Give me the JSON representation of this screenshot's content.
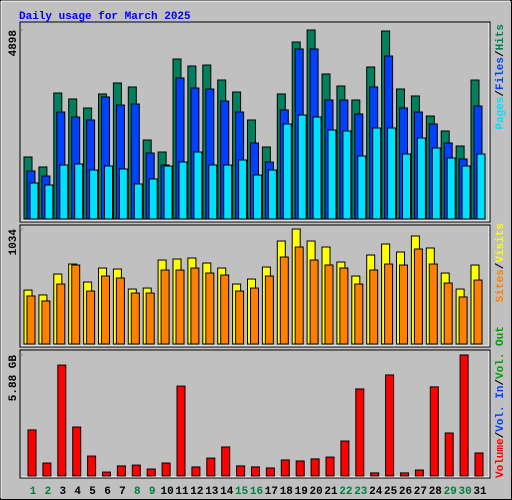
{
  "chart_data": [
    {
      "type": "bar",
      "title": "Daily usage for March 2025",
      "ylim": [
        0,
        4898
      ],
      "yticks": [
        4898
      ],
      "separator": "/",
      "series": [
        {
          "name": "Hits",
          "color": "#00805c",
          "values": [
            1607,
            1348,
            3265,
            3110,
            2877,
            3240,
            3525,
            3421,
            2047,
            1736,
            4146,
            3965,
            3991,
            3602,
            3291,
            2566,
            1866,
            3240,
            4587,
            4898,
            3758,
            3447,
            3084,
            3939,
            4872,
            3369,
            3188,
            2669,
            2281,
            1892,
            3602
          ]
        },
        {
          "name": "Files",
          "color": "#0040ff",
          "values": [
            1244,
            1114,
            2773,
            2643,
            2566,
            3162,
            2954,
            2980,
            1710,
            1399,
            3654,
            3395,
            3369,
            3058,
            2773,
            1970,
            1477,
            2825,
            4406,
            4406,
            3084,
            3084,
            2721,
            3421,
            4224,
            2877,
            2773,
            2462,
            1970,
            1555,
            2928
          ]
        },
        {
          "name": "Pages",
          "color": "#00e0ff",
          "values": [
            933,
            881,
            1399,
            1425,
            1270,
            1373,
            1296,
            907,
            1037,
            1373,
            1477,
            1736,
            1399,
            1399,
            1529,
            1140,
            1270,
            2462,
            2695,
            2643,
            2306,
            2281,
            1633,
            2358,
            2358,
            1684,
            2099,
            1840,
            1581,
            1373,
            1684
          ]
        }
      ]
    },
    {
      "type": "bar",
      "ylim": [
        0,
        1034
      ],
      "yticks": [
        1034
      ],
      "separator": "/",
      "series": [
        {
          "name": "Visits",
          "color": "#ffff00",
          "values": [
            485,
            441,
            629,
            719,
            557,
            683,
            674,
            494,
            503,
            755,
            764,
            773,
            728,
            683,
            539,
            584,
            692,
            926,
            1034,
            926,
            872,
            737,
            611,
            800,
            899,
            827,
            971,
            863,
            638,
            494,
            710
          ]
        },
        {
          "name": "Sites",
          "color": "#ff8000",
          "values": [
            432,
            387,
            539,
            710,
            476,
            611,
            593,
            458,
            458,
            665,
            665,
            683,
            638,
            620,
            476,
            503,
            611,
            782,
            872,
            755,
            710,
            683,
            539,
            665,
            719,
            710,
            854,
            719,
            548,
            423,
            575
          ]
        }
      ]
    },
    {
      "type": "bar",
      "ylim": [
        0,
        5.88
      ],
      "yticks": [
        {
          "value": 5.88,
          "label": "5.88 GB"
        }
      ],
      "separator": "/",
      "categories": [
        "1",
        "2",
        "3",
        "4",
        "5",
        "6",
        "7",
        "8",
        "9",
        "10",
        "11",
        "12",
        "13",
        "14",
        "15",
        "16",
        "17",
        "18",
        "19",
        "20",
        "21",
        "22",
        "23",
        "24",
        "25",
        "26",
        "27",
        "28",
        "29",
        "30",
        "31"
      ],
      "category_colors": [
        "#008040",
        "#008040",
        "#000000",
        "#000000",
        "#000000",
        "#000000",
        "#000000",
        "#008040",
        "#008040",
        "#000000",
        "#000000",
        "#000000",
        "#000000",
        "#000000",
        "#008040",
        "#008040",
        "#000000",
        "#000000",
        "#000000",
        "#000000",
        "#000000",
        "#008040",
        "#008040",
        "#000000",
        "#000000",
        "#000000",
        "#000000",
        "#000000",
        "#008040",
        "#008040",
        "#000000"
      ],
      "series": [
        {
          "name": "Volume",
          "color": "#ff0000",
          "values": [
            2.24,
            0.63,
            5.39,
            2.38,
            0.97,
            0.19,
            0.49,
            0.53,
            0.34,
            0.63,
            4.37,
            0.44,
            0.87,
            1.41,
            0.49,
            0.44,
            0.39,
            0.78,
            0.73,
            0.83,
            0.92,
            1.7,
            4.23,
            0.15,
            4.91,
            0.15,
            0.29,
            4.33,
            2.09,
            5.88,
            1.12
          ]
        }
      ],
      "legend_extra": [
        {
          "name": "Vol. In",
          "color": "#0040ff"
        },
        {
          "name": "Vol. Out",
          "color": "#00a000"
        }
      ]
    }
  ]
}
